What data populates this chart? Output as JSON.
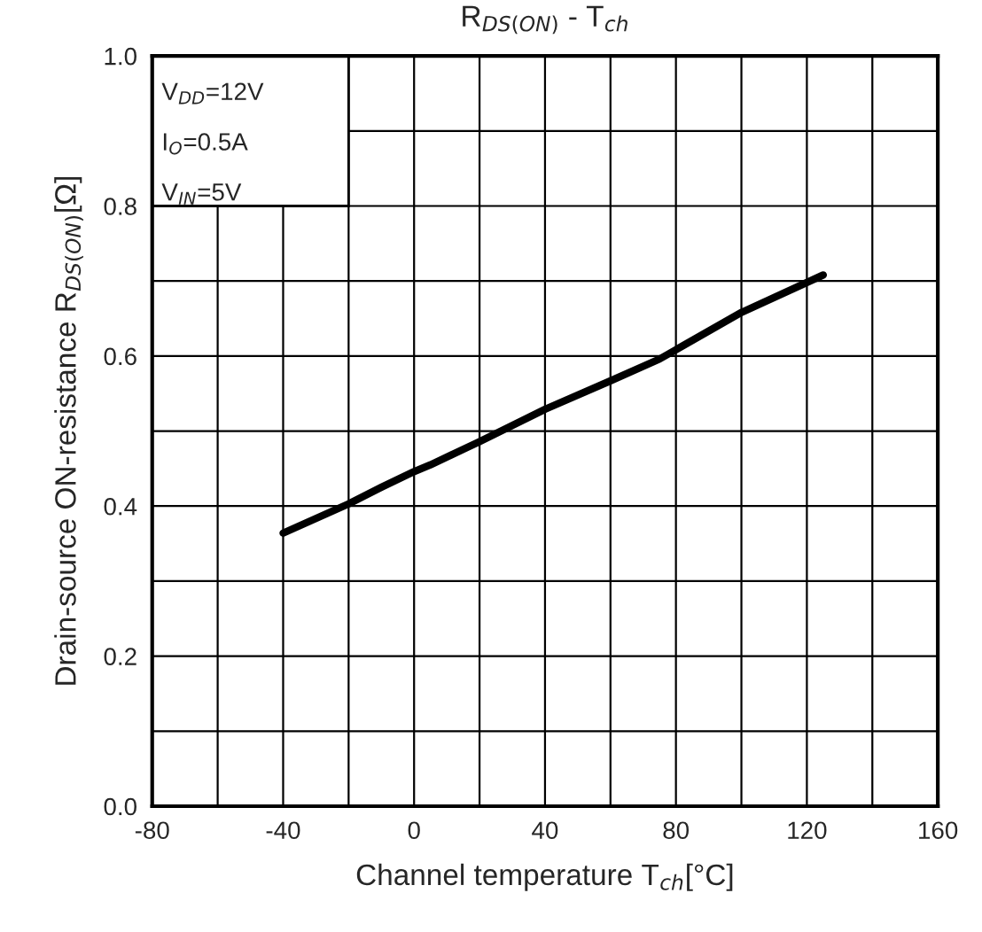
{
  "chart_data": {
    "type": "line",
    "title": "R$_{DS(ON)}$ - T$_{ch}$",
    "xlabel": "Channel temperature T$_{ch}$[°C]",
    "ylabel": "Drain-source ON-resistance R$_{DS(ON)}$[Ω]",
    "annotations": [
      "V$_{DD}$=12V",
      "I$_{O}$=0.5A",
      "V$_{IN}$=5V"
    ],
    "series": [
      {
        "color": "#000000",
        "x": [
          -40,
          -20,
          -10,
          0,
          5,
          20,
          40,
          60,
          75,
          100,
          125
        ],
        "values": [
          0.364,
          0.403,
          0.425,
          0.446,
          0.455,
          0.486,
          0.529,
          0.567,
          0.596,
          0.658,
          0.708
        ]
      }
    ],
    "xlim": [
      -80,
      160
    ],
    "xticks": [
      -80,
      {
        "value": -60,
        "label": null
      },
      -40,
      {
        "value": -20,
        "label": null
      },
      0,
      {
        "value": 20,
        "label": null
      },
      40,
      {
        "value": 60,
        "label": null
      },
      80,
      {
        "value": 100,
        "label": null
      },
      120,
      {
        "value": 140,
        "label": null
      },
      160
    ],
    "ylim": [
      0,
      1
    ],
    "yticks": [
      {
        "value": 0,
        "label": "0.0"
      },
      {
        "value": 0.1,
        "label": null
      },
      {
        "value": 0.2,
        "label": "0.2"
      },
      {
        "value": 0.3,
        "label": null
      },
      {
        "value": 0.4,
        "label": "0.4"
      },
      {
        "value": 0.5,
        "label": null
      },
      {
        "value": 0.6,
        "label": "0.6"
      },
      {
        "value": 0.7,
        "label": null
      },
      {
        "value": 0.8,
        "label": "0.8"
      },
      {
        "value": 0.9,
        "label": null
      },
      {
        "value": 1.0,
        "label": "1.0"
      }
    ],
    "grid": true,
    "legend": false,
    "marker": "none",
    "line_style": "solid"
  }
}
